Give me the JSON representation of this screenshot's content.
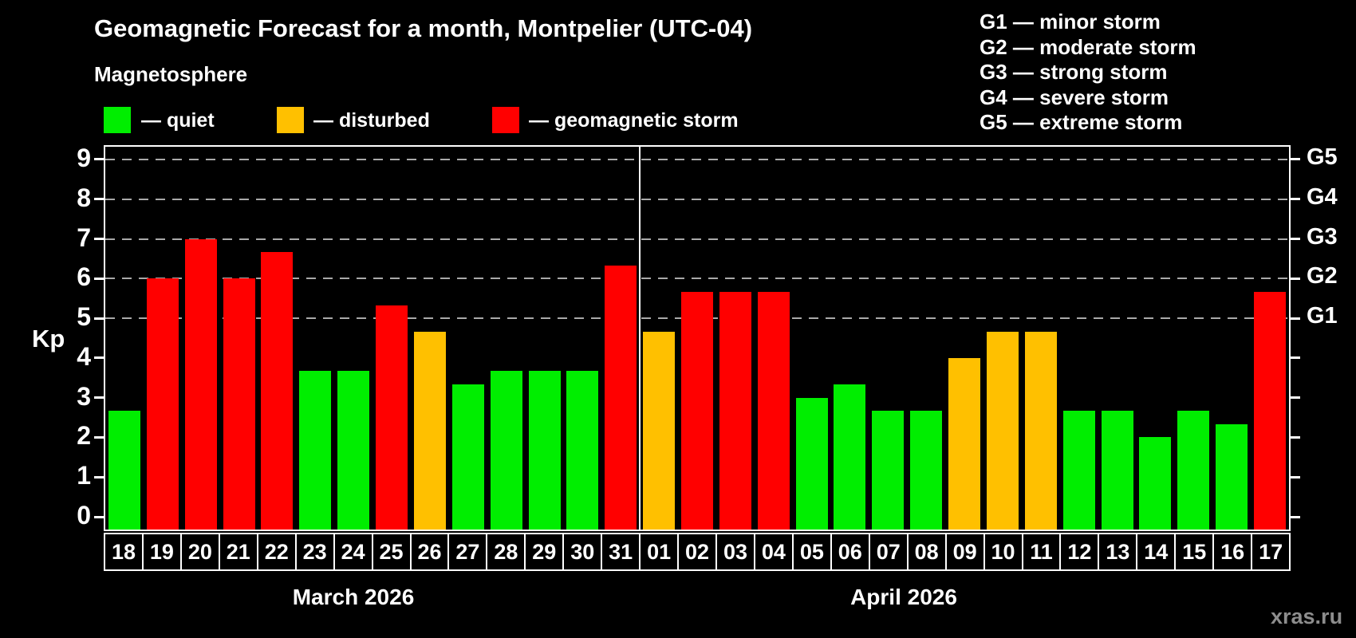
{
  "page": {
    "title": "Geomagnetic Forecast for a month, Montpelier (UTC-04)",
    "subtitle": "Magnetosphere",
    "watermark": "xras.ru"
  },
  "legend": {
    "items": [
      {
        "id": "quiet",
        "label": "— quiet",
        "color": "#00ee00"
      },
      {
        "id": "disturbed",
        "label": "— disturbed",
        "color": "#ffc000"
      },
      {
        "id": "storm",
        "label": "— geomagnetic storm",
        "color": "#ff0000"
      }
    ]
  },
  "storm_scale_legend": {
    "items": [
      {
        "label": "G1 — minor storm"
      },
      {
        "label": "G2 — moderate storm"
      },
      {
        "label": "G3 — strong storm"
      },
      {
        "label": "G4 — severe storm"
      },
      {
        "label": "G5 — extreme storm"
      }
    ]
  },
  "y_axis": {
    "label": "Kp",
    "ticks": [
      0,
      1,
      2,
      3,
      4,
      5,
      6,
      7,
      8,
      9
    ]
  },
  "right_axis": {
    "labels": [
      {
        "text": "G1",
        "kp": 5
      },
      {
        "text": "G2",
        "kp": 6
      },
      {
        "text": "G3",
        "kp": 7
      },
      {
        "text": "G4",
        "kp": 8
      },
      {
        "text": "G5",
        "kp": 9
      }
    ]
  },
  "months": [
    {
      "label": "March 2026",
      "days": 14
    },
    {
      "label": "April 2026",
      "days": 17
    }
  ],
  "status_colors": {
    "quiet": "#00ee00",
    "disturbed": "#ffc000",
    "storm": "#ff0000"
  },
  "chart_data": {
    "type": "bar",
    "title": "Geomagnetic Forecast for a month, Montpelier (UTC-04)",
    "subtitle": "Magnetosphere",
    "ylabel": "Kp",
    "ylim": [
      0,
      9.6
    ],
    "grid_levels_kp": [
      5,
      6,
      7,
      8,
      9
    ],
    "grid": "horizontal dashed gray lines at Kp 5–9 (G1–G5 storm thresholds)",
    "legend_position": "top-left",
    "right_axis_labels": [
      "G1",
      "G2",
      "G3",
      "G4",
      "G5"
    ],
    "points": [
      {
        "month": "March 2026",
        "day": "18",
        "kp": 2.67,
        "status": "quiet"
      },
      {
        "month": "March 2026",
        "day": "19",
        "kp": 6.0,
        "status": "storm"
      },
      {
        "month": "March 2026",
        "day": "20",
        "kp": 7.0,
        "status": "storm"
      },
      {
        "month": "March 2026",
        "day": "21",
        "kp": 6.0,
        "status": "storm"
      },
      {
        "month": "March 2026",
        "day": "22",
        "kp": 6.67,
        "status": "storm"
      },
      {
        "month": "March 2026",
        "day": "23",
        "kp": 3.67,
        "status": "quiet"
      },
      {
        "month": "March 2026",
        "day": "24",
        "kp": 3.67,
        "status": "quiet"
      },
      {
        "month": "March 2026",
        "day": "25",
        "kp": 5.33,
        "status": "storm"
      },
      {
        "month": "March 2026",
        "day": "26",
        "kp": 4.67,
        "status": "disturbed"
      },
      {
        "month": "March 2026",
        "day": "27",
        "kp": 3.33,
        "status": "quiet"
      },
      {
        "month": "March 2026",
        "day": "28",
        "kp": 3.67,
        "status": "quiet"
      },
      {
        "month": "March 2026",
        "day": "29",
        "kp": 3.67,
        "status": "quiet"
      },
      {
        "month": "March 2026",
        "day": "30",
        "kp": 3.67,
        "status": "quiet"
      },
      {
        "month": "March 2026",
        "day": "31",
        "kp": 6.33,
        "status": "storm"
      },
      {
        "month": "April 2026",
        "day": "01",
        "kp": 4.67,
        "status": "disturbed"
      },
      {
        "month": "April 2026",
        "day": "02",
        "kp": 5.67,
        "status": "storm"
      },
      {
        "month": "April 2026",
        "day": "03",
        "kp": 5.67,
        "status": "storm"
      },
      {
        "month": "April 2026",
        "day": "04",
        "kp": 5.67,
        "status": "storm"
      },
      {
        "month": "April 2026",
        "day": "05",
        "kp": 3.0,
        "status": "quiet"
      },
      {
        "month": "April 2026",
        "day": "06",
        "kp": 3.33,
        "status": "quiet"
      },
      {
        "month": "April 2026",
        "day": "07",
        "kp": 2.67,
        "status": "quiet"
      },
      {
        "month": "April 2026",
        "day": "08",
        "kp": 2.67,
        "status": "quiet"
      },
      {
        "month": "April 2026",
        "day": "09",
        "kp": 4.0,
        "status": "disturbed"
      },
      {
        "month": "April 2026",
        "day": "10",
        "kp": 4.67,
        "status": "disturbed"
      },
      {
        "month": "April 2026",
        "day": "11",
        "kp": 4.67,
        "status": "disturbed"
      },
      {
        "month": "April 2026",
        "day": "12",
        "kp": 2.67,
        "status": "quiet"
      },
      {
        "month": "April 2026",
        "day": "13",
        "kp": 2.67,
        "status": "quiet"
      },
      {
        "month": "April 2026",
        "day": "14",
        "kp": 2.0,
        "status": "quiet"
      },
      {
        "month": "April 2026",
        "day": "15",
        "kp": 2.67,
        "status": "quiet"
      },
      {
        "month": "April 2026",
        "day": "16",
        "kp": 2.33,
        "status": "quiet"
      },
      {
        "month": "April 2026",
        "day": "17",
        "kp": 5.67,
        "status": "storm"
      }
    ]
  }
}
